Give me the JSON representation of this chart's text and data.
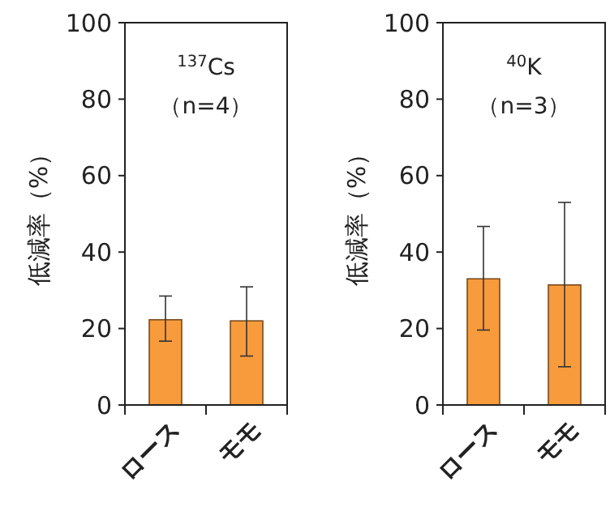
{
  "chart_data": [
    {
      "type": "bar",
      "categories": [
        "ロース",
        "モモ"
      ],
      "values": [
        22.3,
        22
      ],
      "errors": [
        [
          16.7,
          28.5
        ],
        [
          12.8,
          30.9
        ]
      ],
      "color": "#f79b3c",
      "ylabel": "低減率（%）",
      "ylim": [
        0,
        100
      ],
      "yticks": [
        0,
        20,
        40,
        60,
        80,
        100
      ],
      "grid": false,
      "annotations": [
        "$^{137}$Cs",
        "（n=4）"
      ]
    },
    {
      "type": "bar",
      "categories": [
        "ロース",
        "モモ"
      ],
      "values": [
        33,
        31.4
      ],
      "errors": [
        [
          19.6,
          46.7
        ],
        [
          10,
          53
        ]
      ],
      "color": "#f79b3c",
      "ylabel": "低減率（%）",
      "ylim": [
        0,
        100
      ],
      "yticks": [
        0,
        20,
        40,
        60,
        80,
        100
      ],
      "grid": false,
      "annotations": [
        "$^{40}$K",
        "（n=3）"
      ]
    }
  ]
}
